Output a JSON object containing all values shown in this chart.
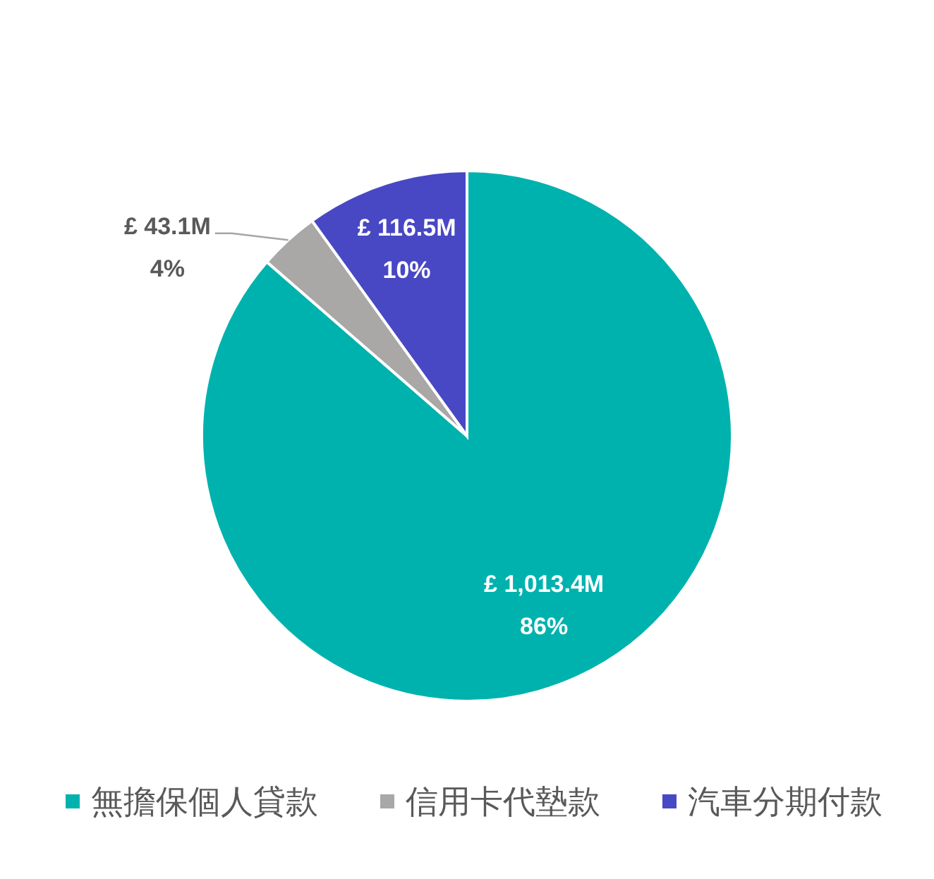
{
  "chart_data": {
    "type": "pie",
    "categories": [
      "無擔保個人貸款",
      "信用卡代墊款",
      "汽車分期付款"
    ],
    "values": [
      1013.4,
      43.1,
      116.5
    ],
    "colors": [
      "#00b2ae",
      "#aaa7a7",
      "#4848c4"
    ],
    "value_labels": [
      "£ 1,013.4M",
      "£ 43.1M",
      "£ 116.5M"
    ],
    "annotations": [
      "86%",
      "4%",
      "10%"
    ],
    "legend": "bottom"
  }
}
